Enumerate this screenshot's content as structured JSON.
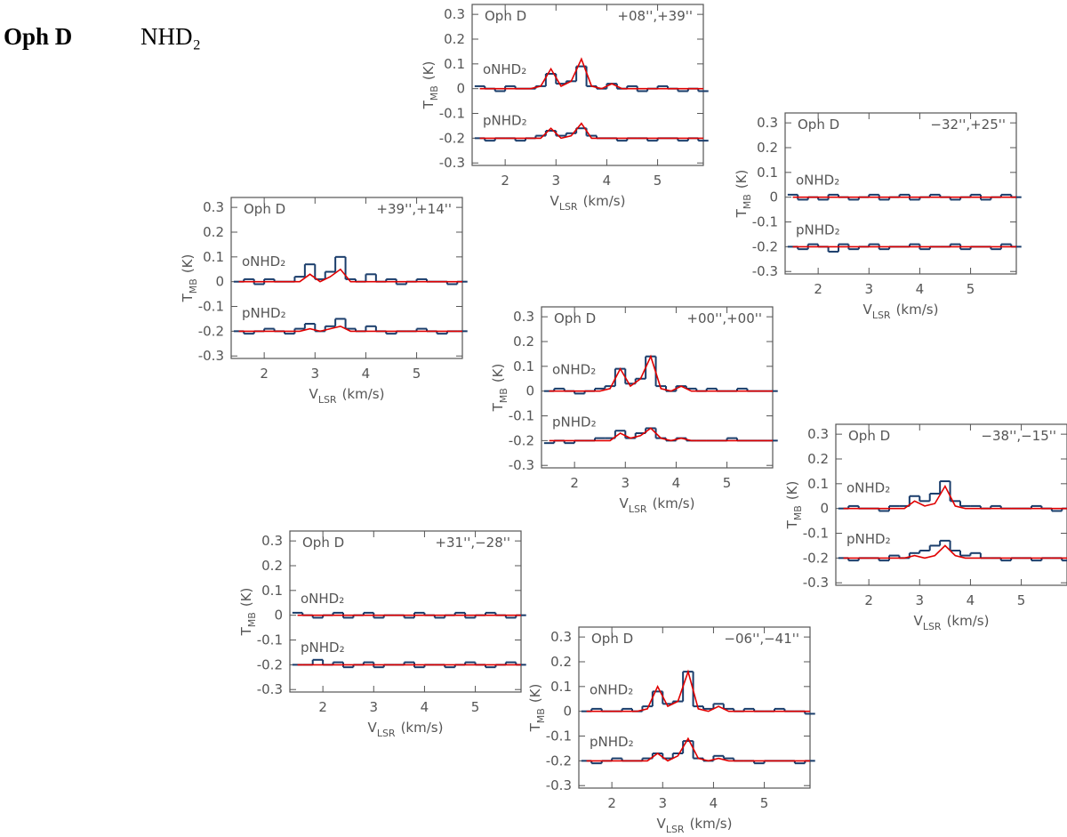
{
  "header": {
    "source": "Oph D",
    "molecule": "NHD₂"
  },
  "axis_labels": {
    "x_main": "V",
    "x_sub": "LSR",
    "x_unit": "(km/s)",
    "y_main": "T",
    "y_sub": "MB",
    "y_unit": "(K)"
  },
  "chart_data": [
    {
      "type": "line",
      "source": "Oph D",
      "title": "+08'',+39''",
      "x": [
        1.5,
        1.7,
        1.9,
        2.1,
        2.3,
        2.5,
        2.7,
        2.9,
        3.1,
        3.3,
        3.5,
        3.7,
        3.9,
        4.1,
        4.3,
        4.5,
        4.7,
        4.9,
        5.1,
        5.3,
        5.5,
        5.7,
        5.9
      ],
      "xlim": [
        1.35,
        5.9
      ],
      "ylim": [
        -0.31,
        0.34
      ],
      "xticks": [
        2,
        3,
        4,
        5
      ],
      "yticks": [
        0.3,
        0.2,
        0.1,
        0,
        -0.1,
        -0.2,
        -0.3
      ],
      "series": [
        {
          "name": "oNHD₂",
          "color": "#1a3d6b",
          "style": "step",
          "values": [
            0.01,
            0,
            -0.01,
            0.01,
            0,
            0,
            0.01,
            0.06,
            0.02,
            0.03,
            0.09,
            0.01,
            0,
            0.02,
            0,
            0.01,
            -0.01,
            0,
            0.01,
            0,
            -0.01,
            0,
            -0.01
          ]
        },
        {
          "color": "#e00000",
          "style": "line",
          "values": [
            0,
            0,
            0,
            0,
            0,
            0,
            0.01,
            0.08,
            0.01,
            0.03,
            0.12,
            0.01,
            0,
            0.02,
            0,
            0,
            0,
            0,
            0,
            0,
            0,
            0,
            0
          ]
        },
        {
          "name": "pNHD₂",
          "color": "#1a3d6b",
          "style": "step",
          "values": [
            -0.2,
            -0.21,
            -0.2,
            -0.2,
            -0.21,
            -0.2,
            -0.19,
            -0.17,
            -0.19,
            -0.18,
            -0.16,
            -0.19,
            -0.2,
            -0.2,
            -0.21,
            -0.2,
            -0.2,
            -0.21,
            -0.2,
            -0.2,
            -0.21,
            -0.2,
            -0.21
          ]
        },
        {
          "color": "#e00000",
          "style": "line",
          "values": [
            -0.2,
            -0.2,
            -0.2,
            -0.2,
            -0.2,
            -0.2,
            -0.2,
            -0.16,
            -0.2,
            -0.19,
            -0.14,
            -0.2,
            -0.2,
            -0.2,
            -0.2,
            -0.2,
            -0.2,
            -0.2,
            -0.2,
            -0.2,
            -0.2,
            -0.2,
            -0.2
          ]
        }
      ]
    },
    {
      "type": "line",
      "source": "Oph D",
      "title": "−32'',+25''",
      "x": [
        1.5,
        1.7,
        1.9,
        2.1,
        2.3,
        2.5,
        2.7,
        2.9,
        3.1,
        3.3,
        3.5,
        3.7,
        3.9,
        4.1,
        4.3,
        4.5,
        4.7,
        4.9,
        5.1,
        5.3,
        5.5,
        5.7,
        5.9
      ],
      "xlim": [
        1.35,
        5.9
      ],
      "ylim": [
        -0.31,
        0.34
      ],
      "xticks": [
        2,
        3,
        4,
        5
      ],
      "yticks": [
        0.3,
        0.2,
        0.1,
        0,
        -0.1,
        -0.2,
        -0.3
      ],
      "series": [
        {
          "name": "oNHD₂",
          "color": "#1a3d6b",
          "style": "step",
          "values": [
            0.01,
            -0.01,
            0,
            -0.01,
            0.01,
            0,
            -0.01,
            0,
            0.01,
            -0.01,
            0,
            0.01,
            -0.01,
            0,
            0.01,
            0,
            -0.01,
            0,
            0.01,
            -0.01,
            0,
            0.01,
            0
          ]
        },
        {
          "color": "#e00000",
          "style": "line",
          "values": [
            0,
            0,
            0,
            0,
            0,
            0,
            0,
            0,
            0,
            0,
            0,
            0,
            0,
            0,
            0,
            0,
            0,
            0,
            0,
            0,
            0,
            0,
            0
          ]
        },
        {
          "name": "pNHD₂",
          "color": "#1a3d6b",
          "style": "step",
          "values": [
            -0.2,
            -0.21,
            -0.19,
            -0.2,
            -0.22,
            -0.19,
            -0.21,
            -0.2,
            -0.19,
            -0.21,
            -0.2,
            -0.2,
            -0.19,
            -0.21,
            -0.2,
            -0.2,
            -0.19,
            -0.21,
            -0.2,
            -0.2,
            -0.21,
            -0.19,
            -0.2
          ]
        },
        {
          "color": "#e00000",
          "style": "line",
          "values": [
            -0.2,
            -0.2,
            -0.2,
            -0.2,
            -0.2,
            -0.2,
            -0.2,
            -0.2,
            -0.2,
            -0.2,
            -0.2,
            -0.2,
            -0.2,
            -0.2,
            -0.2,
            -0.2,
            -0.2,
            -0.2,
            -0.2,
            -0.2,
            -0.2,
            -0.2,
            -0.2
          ]
        }
      ]
    },
    {
      "type": "line",
      "source": "Oph D",
      "title": "+39'',+14''",
      "x": [
        1.5,
        1.7,
        1.9,
        2.1,
        2.3,
        2.5,
        2.7,
        2.9,
        3.1,
        3.3,
        3.5,
        3.7,
        3.9,
        4.1,
        4.3,
        4.5,
        4.7,
        4.9,
        5.1,
        5.3,
        5.5,
        5.7,
        5.9
      ],
      "xlim": [
        1.35,
        5.9
      ],
      "ylim": [
        -0.31,
        0.34
      ],
      "xticks": [
        2,
        3,
        4,
        5
      ],
      "yticks": [
        0.3,
        0.2,
        0.1,
        0,
        -0.1,
        -0.2,
        -0.3
      ],
      "series": [
        {
          "name": "oNHD₂",
          "color": "#1a3d6b",
          "style": "step",
          "values": [
            0,
            0.01,
            -0.01,
            0.01,
            0,
            0,
            0.02,
            0.07,
            0.01,
            0.04,
            0.1,
            0.01,
            0,
            0.03,
            0,
            0.01,
            -0.01,
            0,
            0.01,
            0,
            0,
            -0.01,
            0
          ]
        },
        {
          "color": "#e00000",
          "style": "line",
          "values": [
            0,
            0,
            0,
            0,
            0,
            0,
            0,
            0.03,
            0,
            0.02,
            0.05,
            0,
            0,
            0,
            0,
            0,
            0,
            0,
            0,
            0,
            0,
            0,
            0
          ]
        },
        {
          "name": "pNHD₂",
          "color": "#1a3d6b",
          "style": "step",
          "values": [
            -0.2,
            -0.21,
            -0.2,
            -0.19,
            -0.2,
            -0.21,
            -0.19,
            -0.17,
            -0.2,
            -0.18,
            -0.15,
            -0.19,
            -0.2,
            -0.18,
            -0.2,
            -0.21,
            -0.2,
            -0.2,
            -0.19,
            -0.2,
            -0.21,
            -0.2,
            -0.2
          ]
        },
        {
          "color": "#e00000",
          "style": "line",
          "values": [
            -0.2,
            -0.2,
            -0.2,
            -0.2,
            -0.2,
            -0.2,
            -0.2,
            -0.19,
            -0.2,
            -0.19,
            -0.18,
            -0.2,
            -0.2,
            -0.2,
            -0.2,
            -0.2,
            -0.2,
            -0.2,
            -0.2,
            -0.2,
            -0.2,
            -0.2,
            -0.2
          ]
        }
      ]
    },
    {
      "type": "line",
      "source": "Oph D",
      "title": "+00'',+00''",
      "x": [
        1.5,
        1.7,
        1.9,
        2.1,
        2.3,
        2.5,
        2.7,
        2.9,
        3.1,
        3.3,
        3.5,
        3.7,
        3.9,
        4.1,
        4.3,
        4.5,
        4.7,
        4.9,
        5.1,
        5.3,
        5.5,
        5.7,
        5.9
      ],
      "xlim": [
        1.35,
        5.9
      ],
      "ylim": [
        -0.31,
        0.34
      ],
      "xticks": [
        2,
        3,
        4,
        5
      ],
      "yticks": [
        0.3,
        0.2,
        0.1,
        0,
        -0.1,
        -0.2,
        -0.3
      ],
      "series": [
        {
          "name": "oNHD₂",
          "color": "#1a3d6b",
          "style": "step",
          "values": [
            0,
            0.01,
            0,
            -0.01,
            0,
            0.01,
            0.02,
            0.09,
            0.03,
            0.05,
            0.14,
            0.02,
            0,
            0.02,
            0.01,
            0,
            0.01,
            0,
            0,
            0.01,
            0,
            0,
            0
          ]
        },
        {
          "color": "#e00000",
          "style": "line",
          "values": [
            0,
            0,
            0,
            0,
            0,
            0,
            0.01,
            0.09,
            0.02,
            0.05,
            0.14,
            0.01,
            0,
            0.02,
            0,
            0,
            0,
            0,
            0,
            0,
            0,
            0,
            0
          ]
        },
        {
          "name": "pNHD₂",
          "color": "#1a3d6b",
          "style": "step",
          "values": [
            -0.21,
            -0.2,
            -0.21,
            -0.2,
            -0.2,
            -0.19,
            -0.19,
            -0.16,
            -0.19,
            -0.17,
            -0.15,
            -0.19,
            -0.2,
            -0.19,
            -0.2,
            -0.2,
            -0.2,
            -0.2,
            -0.19,
            -0.2,
            -0.2,
            -0.2,
            -0.2
          ]
        },
        {
          "color": "#e00000",
          "style": "line",
          "values": [
            -0.2,
            -0.2,
            -0.2,
            -0.2,
            -0.2,
            -0.2,
            -0.2,
            -0.17,
            -0.19,
            -0.18,
            -0.15,
            -0.19,
            -0.2,
            -0.19,
            -0.2,
            -0.2,
            -0.2,
            -0.2,
            -0.2,
            -0.2,
            -0.2,
            -0.2,
            -0.2
          ]
        }
      ]
    },
    {
      "type": "line",
      "source": "Oph D",
      "title": "−38'',−15''",
      "x": [
        1.5,
        1.7,
        1.9,
        2.1,
        2.3,
        2.5,
        2.7,
        2.9,
        3.1,
        3.3,
        3.5,
        3.7,
        3.9,
        4.1,
        4.3,
        4.5,
        4.7,
        4.9,
        5.1,
        5.3,
        5.5,
        5.7,
        5.9
      ],
      "xlim": [
        1.35,
        5.9
      ],
      "ylim": [
        -0.31,
        0.34
      ],
      "xticks": [
        2,
        3,
        4,
        5
      ],
      "yticks": [
        0.3,
        0.2,
        0.1,
        0,
        -0.1,
        -0.2,
        -0.3
      ],
      "series": [
        {
          "name": "oNHD₂",
          "color": "#1a3d6b",
          "style": "step",
          "values": [
            0,
            0.01,
            0,
            0,
            -0.01,
            0.01,
            0.01,
            0.05,
            0.03,
            0.06,
            0.11,
            0.03,
            0.01,
            0.01,
            0,
            0.01,
            0,
            0,
            0,
            0.01,
            0,
            -0.01,
            0
          ]
        },
        {
          "color": "#e00000",
          "style": "line",
          "values": [
            0,
            0,
            0,
            0,
            0,
            0,
            0,
            0.03,
            0.01,
            0.02,
            0.09,
            0.01,
            0,
            0,
            0,
            0,
            0,
            0,
            0,
            0,
            0,
            0,
            0
          ]
        },
        {
          "name": "pNHD₂",
          "color": "#1a3d6b",
          "style": "step",
          "values": [
            -0.2,
            -0.21,
            -0.2,
            -0.2,
            -0.21,
            -0.19,
            -0.2,
            -0.18,
            -0.17,
            -0.15,
            -0.13,
            -0.17,
            -0.19,
            -0.18,
            -0.2,
            -0.2,
            -0.21,
            -0.2,
            -0.2,
            -0.21,
            -0.2,
            -0.2,
            -0.21
          ]
        },
        {
          "color": "#e00000",
          "style": "line",
          "values": [
            -0.2,
            -0.2,
            -0.2,
            -0.2,
            -0.2,
            -0.2,
            -0.2,
            -0.19,
            -0.2,
            -0.19,
            -0.15,
            -0.19,
            -0.2,
            -0.2,
            -0.2,
            -0.2,
            -0.2,
            -0.2,
            -0.2,
            -0.2,
            -0.2,
            -0.2,
            -0.2
          ]
        }
      ]
    },
    {
      "type": "line",
      "source": "Oph D",
      "title": "+31'',−28''",
      "x": [
        1.5,
        1.7,
        1.9,
        2.1,
        2.3,
        2.5,
        2.7,
        2.9,
        3.1,
        3.3,
        3.5,
        3.7,
        3.9,
        4.1,
        4.3,
        4.5,
        4.7,
        4.9,
        5.1,
        5.3,
        5.5,
        5.7,
        5.9
      ],
      "xlim": [
        1.35,
        5.9
      ],
      "ylim": [
        -0.31,
        0.34
      ],
      "xticks": [
        2,
        3,
        4,
        5
      ],
      "yticks": [
        0.3,
        0.2,
        0.1,
        0,
        -0.1,
        -0.2,
        -0.3
      ],
      "series": [
        {
          "name": "oNHD₂",
          "color": "#1a3d6b",
          "style": "step",
          "values": [
            0.01,
            0,
            -0.01,
            0,
            0.01,
            -0.01,
            0,
            0.01,
            -0.01,
            0,
            0,
            -0.01,
            0.01,
            0,
            -0.01,
            0,
            0.01,
            -0.01,
            0,
            0.01,
            0,
            -0.01,
            0
          ]
        },
        {
          "color": "#e00000",
          "style": "line",
          "values": [
            0,
            0,
            0,
            0,
            0,
            0,
            0,
            0,
            0,
            0,
            0,
            0,
            0,
            0,
            0,
            0,
            0,
            0,
            0,
            0,
            0,
            0,
            0
          ]
        },
        {
          "name": "pNHD₂",
          "color": "#1a3d6b",
          "style": "step",
          "values": [
            -0.2,
            -0.2,
            -0.18,
            -0.2,
            -0.19,
            -0.21,
            -0.2,
            -0.19,
            -0.21,
            -0.2,
            -0.2,
            -0.19,
            -0.21,
            -0.2,
            -0.2,
            -0.21,
            -0.2,
            -0.19,
            -0.2,
            -0.21,
            -0.2,
            -0.19,
            -0.2
          ]
        },
        {
          "color": "#e00000",
          "style": "line",
          "values": [
            -0.2,
            -0.2,
            -0.2,
            -0.2,
            -0.2,
            -0.2,
            -0.2,
            -0.2,
            -0.2,
            -0.2,
            -0.2,
            -0.2,
            -0.2,
            -0.2,
            -0.2,
            -0.2,
            -0.2,
            -0.2,
            -0.2,
            -0.2,
            -0.2,
            -0.2,
            -0.2
          ]
        }
      ]
    },
    {
      "type": "line",
      "source": "Oph D",
      "title": "−06'',−41''",
      "x": [
        1.5,
        1.7,
        1.9,
        2.1,
        2.3,
        2.5,
        2.7,
        2.9,
        3.1,
        3.3,
        3.5,
        3.7,
        3.9,
        4.1,
        4.3,
        4.5,
        4.7,
        4.9,
        5.1,
        5.3,
        5.5,
        5.7,
        5.9
      ],
      "xlim": [
        1.35,
        5.9
      ],
      "ylim": [
        -0.31,
        0.34
      ],
      "xticks": [
        2,
        3,
        4,
        5
      ],
      "yticks": [
        0.3,
        0.2,
        0.1,
        0,
        -0.1,
        -0.2,
        -0.3
      ],
      "series": [
        {
          "name": "oNHD₂",
          "color": "#1a3d6b",
          "style": "step",
          "values": [
            0,
            0.01,
            0,
            0,
            0.01,
            0,
            0.02,
            0.08,
            0.03,
            0.04,
            0.16,
            0.02,
            0.01,
            0.03,
            0.01,
            0,
            0.01,
            0,
            0,
            0.01,
            0,
            0,
            -0.01
          ]
        },
        {
          "color": "#e00000",
          "style": "line",
          "values": [
            0,
            0,
            0,
            0,
            0,
            0,
            0.01,
            0.1,
            0.02,
            0.04,
            0.16,
            0.01,
            0,
            0.02,
            0,
            0,
            0,
            0,
            0,
            0,
            0,
            0,
            0
          ]
        },
        {
          "name": "pNHD₂",
          "color": "#1a3d6b",
          "style": "step",
          "values": [
            -0.2,
            -0.21,
            -0.2,
            -0.19,
            -0.2,
            -0.2,
            -0.19,
            -0.17,
            -0.19,
            -0.17,
            -0.12,
            -0.19,
            -0.2,
            -0.18,
            -0.19,
            -0.2,
            -0.2,
            -0.21,
            -0.2,
            -0.2,
            -0.2,
            -0.21,
            -0.2
          ]
        },
        {
          "color": "#e00000",
          "style": "line",
          "values": [
            -0.2,
            -0.2,
            -0.2,
            -0.2,
            -0.2,
            -0.2,
            -0.2,
            -0.17,
            -0.2,
            -0.18,
            -0.11,
            -0.19,
            -0.2,
            -0.19,
            -0.2,
            -0.2,
            -0.2,
            -0.2,
            -0.2,
            -0.2,
            -0.2,
            -0.2,
            -0.2
          ]
        }
      ]
    }
  ]
}
